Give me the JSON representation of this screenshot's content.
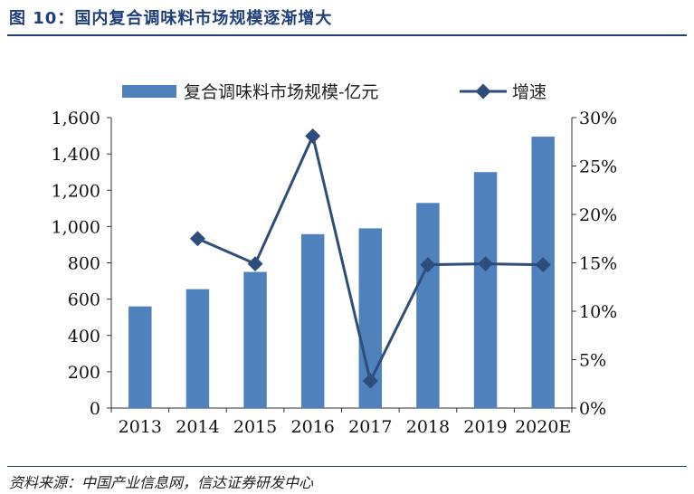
{
  "figure_title": "图 10：国内复合调味料市场规模逐渐增大",
  "source": "资料来源：中国产业信息网，信达证券研发中心",
  "colors": {
    "bar": "#4f81bd",
    "line": "#2e4d7b",
    "title": "#1f3f7a"
  },
  "chart_data": {
    "type": "bar",
    "categories": [
      "2013",
      "2014",
      "2015",
      "2016",
      "2017",
      "2018",
      "2019",
      "2020E"
    ],
    "series": [
      {
        "name": "复合调味料市场规模-亿元",
        "type": "bar",
        "axis": "left",
        "values": [
          560,
          655,
          750,
          958,
          990,
          1130,
          1300,
          1495
        ]
      },
      {
        "name": "增速",
        "type": "line",
        "axis": "right",
        "values": [
          null,
          0.175,
          0.149,
          0.281,
          0.028,
          0.148,
          0.149,
          0.148
        ]
      }
    ],
    "y_left": {
      "min": 0,
      "max": 1600,
      "ticks": [
        0,
        200,
        400,
        600,
        800,
        1000,
        1200,
        1400,
        1600
      ],
      "tick_labels": [
        "0",
        "200",
        "400",
        "600",
        "800",
        "1,000",
        "1,200",
        "1,400",
        "1,600"
      ]
    },
    "y_right": {
      "min": 0,
      "max": 0.3,
      "ticks": [
        0,
        0.05,
        0.1,
        0.15,
        0.2,
        0.25,
        0.3
      ],
      "tick_labels": [
        "0%",
        "5%",
        "10%",
        "15%",
        "20%",
        "25%",
        "30%"
      ]
    },
    "legend": [
      "复合调味料市场规模-亿元",
      "增速"
    ],
    "legend_position": "top",
    "grid": false
  }
}
